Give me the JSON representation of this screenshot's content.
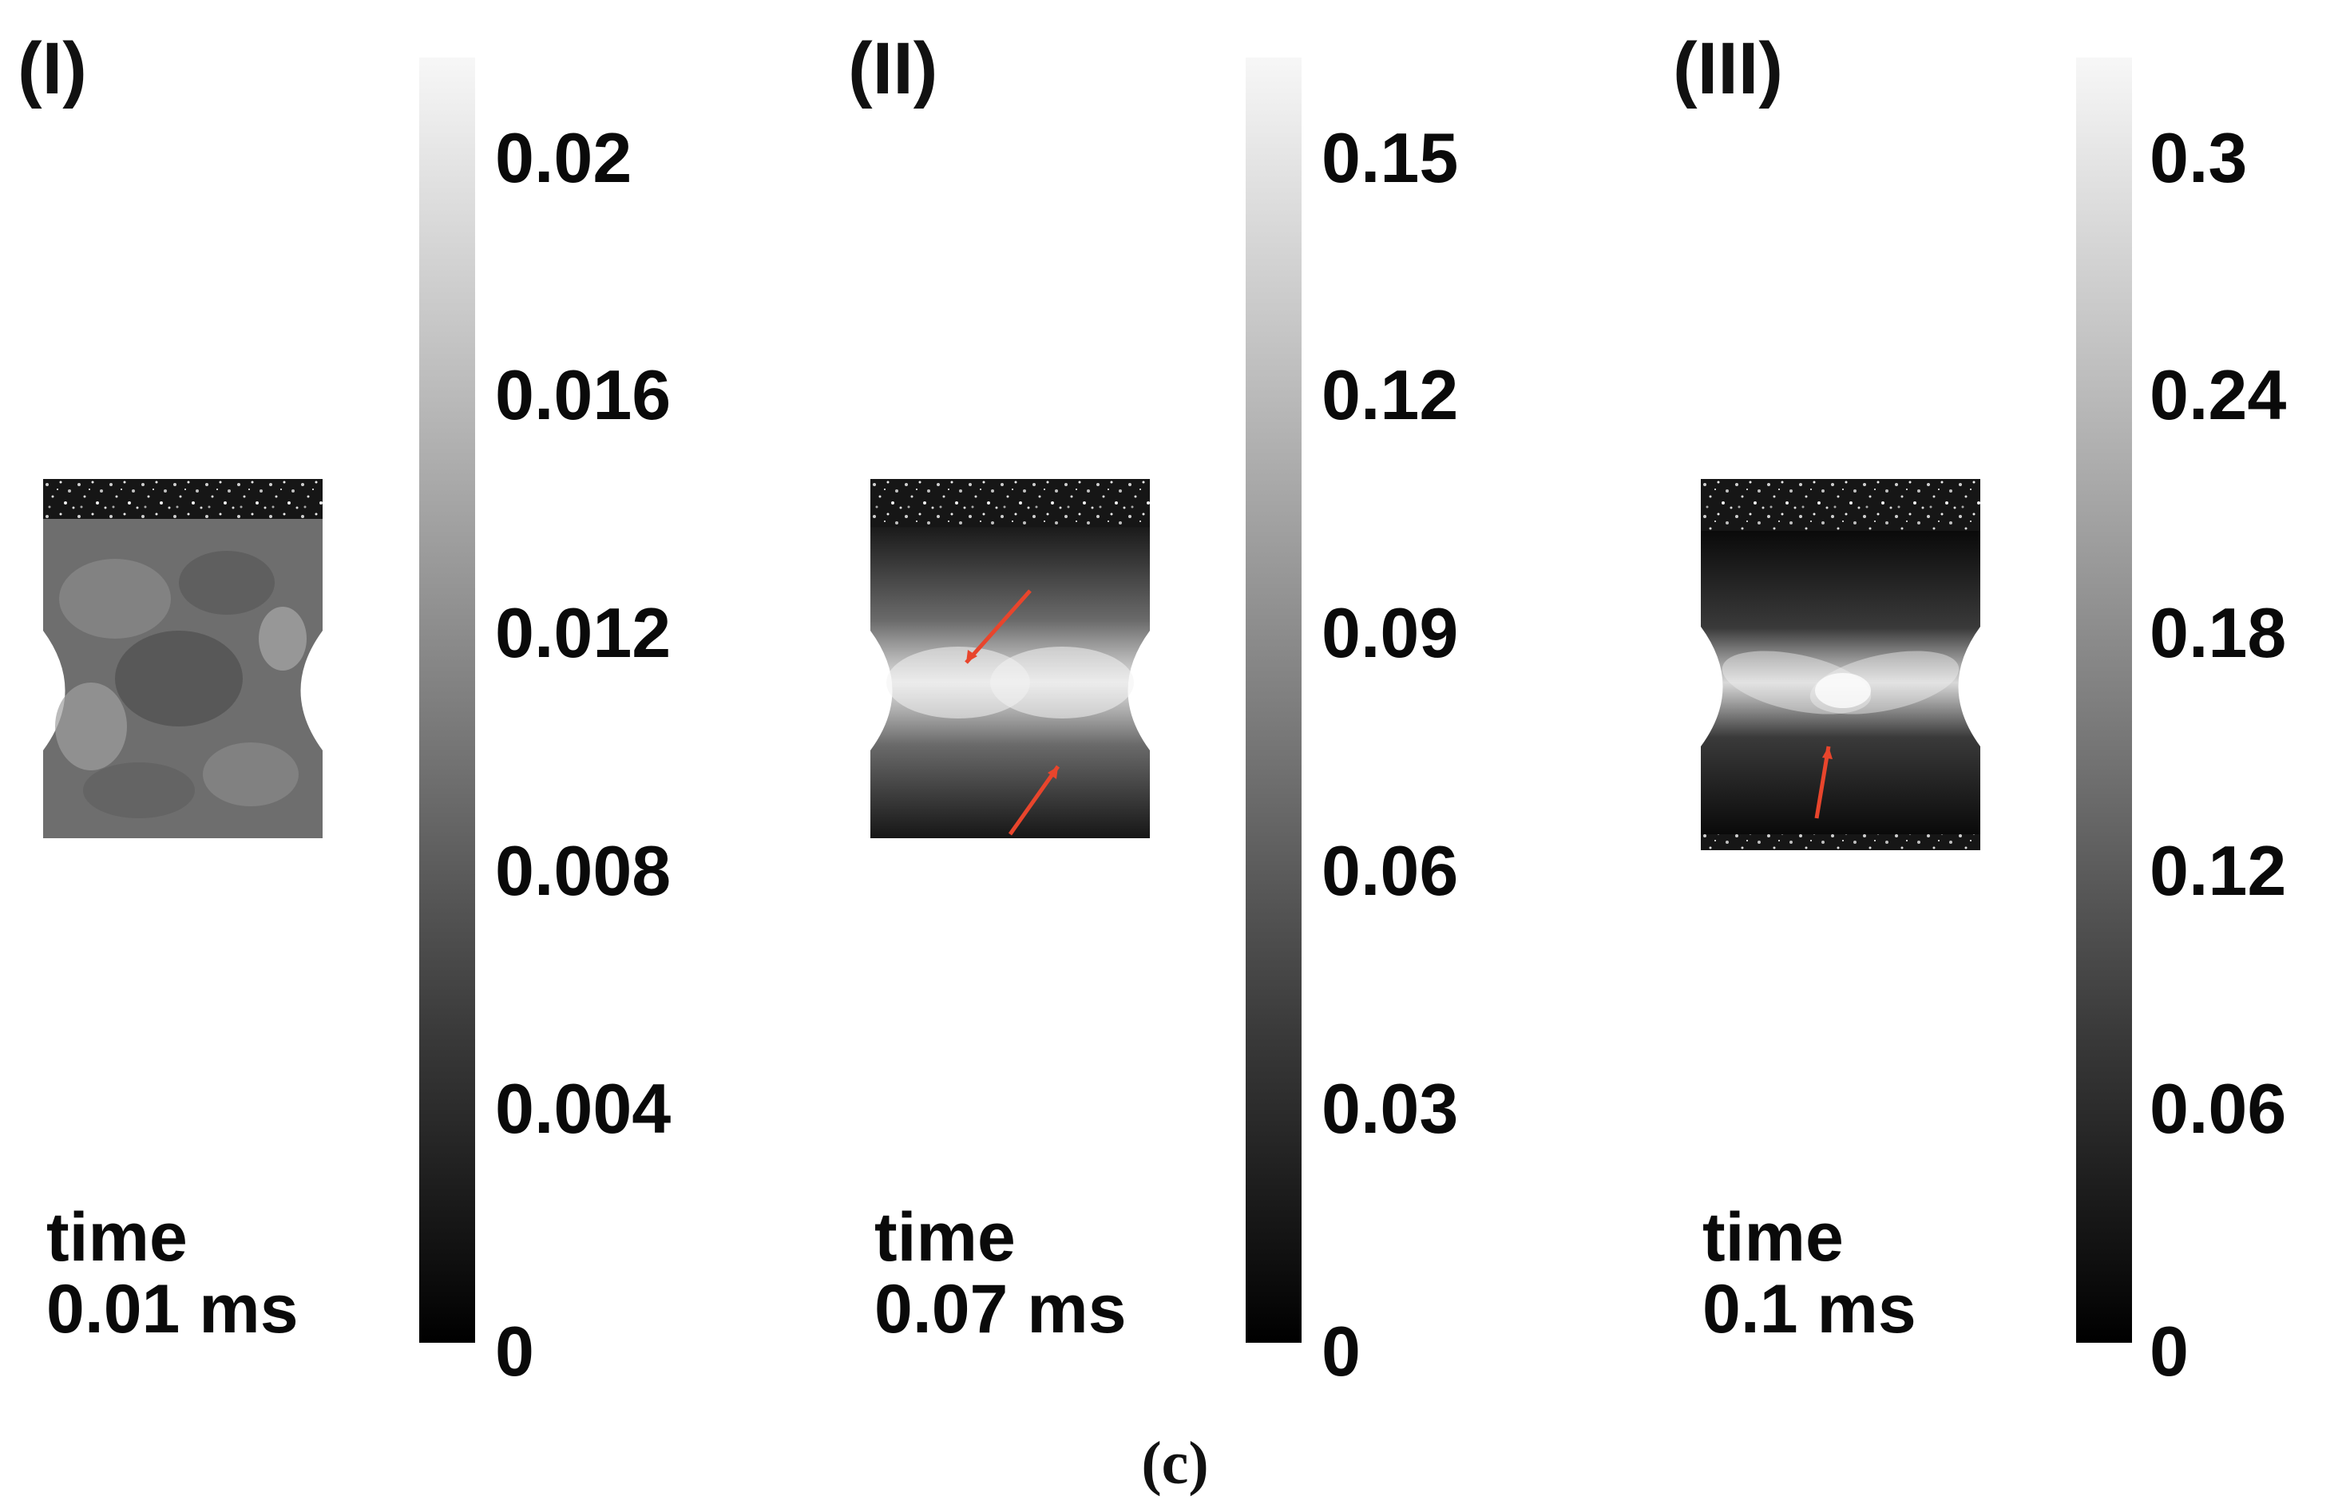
{
  "panels": [
    {
      "label": "(I)",
      "colorbar_ticks": [
        "0.02",
        "0.016",
        "0.012",
        "0.008",
        "0.004",
        "0"
      ],
      "time_word": "time",
      "time_value": "0.01 ms"
    },
    {
      "label": "(II)",
      "colorbar_ticks": [
        "0.15",
        "0.12",
        "0.09",
        "0.06",
        "0.03",
        "0"
      ],
      "time_word": "time",
      "time_value": "0.07 ms"
    },
    {
      "label": "(III)",
      "colorbar_ticks": [
        "0.3",
        "0.24",
        "0.18",
        "0.12",
        "0.06",
        "0"
      ],
      "time_word": "time",
      "time_value": "0.1 ms"
    }
  ],
  "caption": "(c)",
  "colors": {
    "arrow": "#e8452c",
    "colormap_high": "#f7f7f7",
    "colormap_low": "#000000"
  }
}
